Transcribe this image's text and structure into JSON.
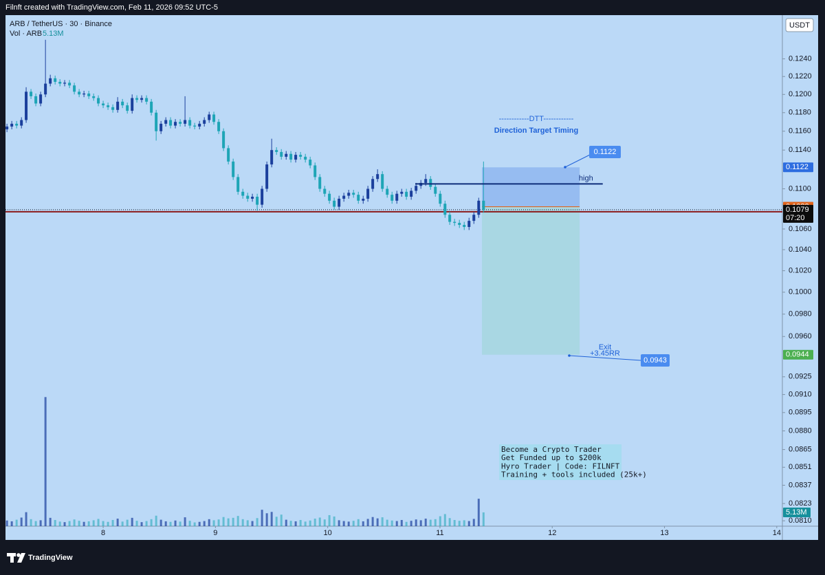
{
  "header": {
    "attribution": "Filnft created with TradingView.com, Feb 11, 2026 09:52 UTC-5",
    "symbol": "ARB / TetherUS · 30 · Binance",
    "currency": "USDT",
    "countdown": "07:20",
    "brand": "TradingView"
  },
  "chart_data": {
    "type": "candlestick",
    "log_scale": true,
    "grid": false,
    "up_color": "#1b3f9c",
    "down_color": "#1ea5b6",
    "xlim": [
      7.13,
      14.05
    ],
    "xticks": [
      8,
      9,
      10,
      11,
      12,
      13,
      14
    ],
    "ylim": [
      0.0806,
      0.1291
    ],
    "yticks": [
      {
        "value": 0.124,
        "label": "0.1240"
      },
      {
        "value": 0.122,
        "label": "0.1220"
      },
      {
        "value": 0.12,
        "label": "0.1200"
      },
      {
        "value": 0.118,
        "label": "0.1180"
      },
      {
        "value": 0.116,
        "label": "0.1160"
      },
      {
        "value": 0.114,
        "label": "0.1140"
      },
      {
        "value": 0.11,
        "label": "0.1100"
      },
      {
        "value": 0.106,
        "label": "0.1060"
      },
      {
        "value": 0.104,
        "label": "0.1040"
      },
      {
        "value": 0.102,
        "label": "0.1020"
      },
      {
        "value": 0.1,
        "label": "0.1000"
      },
      {
        "value": 0.098,
        "label": "0.0980"
      },
      {
        "value": 0.096,
        "label": "0.0960"
      },
      0.0925,
      {
        "value": 0.091,
        "label": "0.0910"
      },
      0.0895,
      {
        "value": 0.088,
        "label": "0.0880"
      },
      0.0865,
      0.0851,
      0.0837,
      0.0823,
      {
        "value": 0.081,
        "label": "0.0810"
      }
    ],
    "x": [
      7.143,
      7.186,
      7.229,
      7.272,
      7.314,
      7.357,
      7.4,
      7.443,
      7.486,
      7.529,
      7.572,
      7.615,
      7.657,
      7.7,
      7.743,
      7.786,
      7.829,
      7.872,
      7.915,
      7.957,
      8.0,
      8.043,
      8.086,
      8.129,
      8.172,
      8.215,
      8.258,
      8.3,
      8.343,
      8.386,
      8.429,
      8.472,
      8.515,
      8.558,
      8.6,
      8.643,
      8.686,
      8.729,
      8.772,
      8.815,
      8.858,
      8.901,
      8.944,
      8.986,
      9.029,
      9.072,
      9.115,
      9.158,
      9.201,
      9.244,
      9.287,
      9.329,
      9.372,
      9.415,
      9.458,
      9.501,
      9.544,
      9.587,
      9.63,
      9.672,
      9.715,
      9.758,
      9.801,
      9.844,
      9.887,
      9.93,
      9.973,
      10.015,
      10.058,
      10.101,
      10.144,
      10.187,
      10.23,
      10.273,
      10.316,
      10.358,
      10.401,
      10.444,
      10.487,
      10.53,
      10.573,
      10.616,
      10.659,
      10.701,
      10.744,
      10.787,
      10.83,
      10.873,
      10.916,
      10.959,
      11.002,
      11.045,
      11.087,
      11.13,
      11.173,
      11.216,
      11.259,
      11.302,
      11.345,
      11.388
    ],
    "open": [
      0.1162,
      0.1165,
      0.1168,
      0.1166,
      0.1172,
      0.1203,
      0.1198,
      0.119,
      0.12,
      0.1212,
      0.1218,
      0.1214,
      0.1212,
      0.1213,
      0.121,
      0.1203,
      0.12,
      0.1201,
      0.1198,
      0.1196,
      0.119,
      0.1188,
      0.1186,
      0.1183,
      0.1192,
      0.1188,
      0.1182,
      0.1196,
      0.1194,
      0.1196,
      0.1192,
      0.118,
      0.116,
      0.1168,
      0.1172,
      0.1166,
      0.117,
      0.1168,
      0.1172,
      0.1166,
      0.1165,
      0.1168,
      0.1172,
      0.1178,
      0.117,
      0.116,
      0.1142,
      0.1128,
      0.1112,
      0.1097,
      0.1093,
      0.109,
      0.1092,
      0.1084,
      0.11,
      0.1125,
      0.114,
      0.1138,
      0.1133,
      0.1136,
      0.113,
      0.1135,
      0.1133,
      0.113,
      0.1124,
      0.1112,
      0.11,
      0.1095,
      0.1088,
      0.1082,
      0.109,
      0.1093,
      0.1096,
      0.1094,
      0.1088,
      0.109,
      0.11,
      0.111,
      0.1115,
      0.11,
      0.1094,
      0.1088,
      0.1095,
      0.1097,
      0.1092,
      0.1098,
      0.1103,
      0.1106,
      0.111,
      0.1102,
      0.1095,
      0.1085,
      0.1074,
      0.1067,
      0.1066,
      0.1064,
      0.1062,
      0.1068,
      0.1074,
      0.1088
    ],
    "high": [
      0.1168,
      0.1171,
      0.1171,
      0.1175,
      0.1208,
      0.1206,
      0.1201,
      0.1203,
      0.1262,
      0.1222,
      0.1221,
      0.1217,
      0.1216,
      0.1216,
      0.1213,
      0.1206,
      0.1204,
      0.1204,
      0.1201,
      0.1199,
      0.1193,
      0.1191,
      0.1189,
      0.1197,
      0.1195,
      0.1191,
      0.12,
      0.1199,
      0.1199,
      0.1199,
      0.1195,
      0.1183,
      0.1171,
      0.1175,
      0.1175,
      0.1173,
      0.1173,
      0.1198,
      0.1175,
      0.1169,
      0.1171,
      0.1175,
      0.1181,
      0.1181,
      0.1173,
      0.1163,
      0.1145,
      0.1131,
      0.1115,
      0.11,
      0.1096,
      0.1095,
      0.1095,
      0.1103,
      0.1128,
      0.1152,
      0.1143,
      0.1141,
      0.1139,
      0.1139,
      0.1138,
      0.1138,
      0.1136,
      0.1133,
      0.1127,
      0.1115,
      0.1103,
      0.1098,
      0.1091,
      0.1093,
      0.1096,
      0.1099,
      0.1099,
      0.1097,
      0.1093,
      0.1103,
      0.1113,
      0.112,
      0.1118,
      0.1103,
      0.1097,
      0.1098,
      0.11,
      0.11,
      0.1101,
      0.1106,
      0.1109,
      0.1115,
      0.1113,
      0.1105,
      0.1098,
      0.1088,
      0.1077,
      0.107,
      0.1069,
      0.1067,
      0.1071,
      0.1077,
      0.1091,
      0.1128
    ],
    "low": [
      0.1159,
      0.1162,
      0.1163,
      0.1163,
      0.1169,
      0.1195,
      0.1187,
      0.1187,
      0.1197,
      0.1209,
      0.1211,
      0.1209,
      0.1209,
      0.1207,
      0.12,
      0.1197,
      0.1197,
      0.1195,
      0.1193,
      0.1187,
      0.1185,
      0.1183,
      0.118,
      0.118,
      0.1185,
      0.1179,
      0.1179,
      0.1191,
      0.1191,
      0.1189,
      0.1177,
      0.115,
      0.1157,
      0.1165,
      0.1163,
      0.1163,
      0.1165,
      0.1165,
      0.1163,
      0.1162,
      0.1162,
      0.1165,
      0.1169,
      0.1167,
      0.1157,
      0.1139,
      0.1125,
      0.1109,
      0.1094,
      0.109,
      0.1087,
      0.1087,
      0.1078,
      0.1081,
      0.1097,
      0.1122,
      0.1135,
      0.113,
      0.113,
      0.1127,
      0.1127,
      0.113,
      0.1127,
      0.1121,
      0.1109,
      0.1097,
      0.1092,
      0.1085,
      0.1079,
      0.1079,
      0.1087,
      0.109,
      0.1091,
      0.1085,
      0.1085,
      0.1087,
      0.1097,
      0.1107,
      0.1097,
      0.1091,
      0.1085,
      0.1085,
      0.1092,
      0.1089,
      0.1089,
      0.1095,
      0.11,
      0.1103,
      0.1099,
      0.1092,
      0.1082,
      0.1071,
      0.1064,
      0.1063,
      0.1061,
      0.1059,
      0.1059,
      0.1065,
      0.1071,
      0.1076
    ],
    "close": [
      0.1165,
      0.1168,
      0.1166,
      0.1172,
      0.1203,
      0.1198,
      0.119,
      0.12,
      0.1212,
      0.1218,
      0.1214,
      0.1212,
      0.1213,
      0.121,
      0.1203,
      0.12,
      0.1201,
      0.1198,
      0.1196,
      0.119,
      0.1188,
      0.1186,
      0.1183,
      0.1192,
      0.1188,
      0.1182,
      0.1196,
      0.1194,
      0.1196,
      0.1192,
      0.118,
      0.116,
      0.1168,
      0.1172,
      0.1166,
      0.117,
      0.1168,
      0.1172,
      0.1166,
      0.1165,
      0.1168,
      0.1172,
      0.1178,
      0.117,
      0.116,
      0.1142,
      0.1128,
      0.1112,
      0.1097,
      0.1093,
      0.109,
      0.1092,
      0.1084,
      0.11,
      0.1125,
      0.114,
      0.1138,
      0.1133,
      0.1136,
      0.113,
      0.1135,
      0.1133,
      0.113,
      0.1124,
      0.1112,
      0.11,
      0.1095,
      0.1088,
      0.1082,
      0.109,
      0.1093,
      0.1096,
      0.1094,
      0.1088,
      0.109,
      0.11,
      0.111,
      0.1115,
      0.11,
      0.1094,
      0.1088,
      0.1095,
      0.1097,
      0.1092,
      0.1098,
      0.1103,
      0.1106,
      0.111,
      0.1102,
      0.1095,
      0.1085,
      0.1074,
      0.1067,
      0.1066,
      0.1064,
      0.1062,
      0.1068,
      0.1074,
      0.1088,
      0.1079
    ],
    "volume": {
      "name": "Vol · ARB",
      "color": "#1ea5b6",
      "ylim": [
        0,
        190000000
      ],
      "values": [
        2100000,
        1800000,
        2400000,
        3200000,
        5200000,
        2600000,
        1900000,
        2200000,
        48000000,
        3100000,
        2300000,
        1700000,
        1500000,
        1900000,
        2500000,
        2000000,
        1600000,
        1800000,
        2200000,
        2700000,
        1900000,
        1600000,
        2300000,
        2800000,
        1700000,
        2400000,
        3100000,
        2000000,
        1500000,
        1900000,
        2600000,
        3900000,
        2400000,
        1800000,
        1600000,
        2100000,
        1700000,
        3300000,
        2000000,
        1400000,
        1600000,
        1900000,
        2600000,
        2200000,
        2500000,
        3400000,
        2900000,
        3100000,
        3800000,
        2600000,
        2200000,
        1900000,
        3000000,
        6100000,
        4800000,
        5300000,
        3500000,
        4300000,
        2400000,
        2000000,
        1800000,
        2300000,
        1700000,
        2100000,
        2800000,
        3200000,
        2500000,
        4100000,
        3600000,
        2200000,
        1900000,
        1700000,
        2000000,
        2600000,
        1800000,
        2700000,
        3400000,
        2900000,
        3300000,
        2400000,
        2100000,
        1900000,
        2300000,
        1600000,
        2000000,
        2500000,
        2200000,
        2800000,
        2400000,
        2600000,
        3700000,
        4500000,
        3000000,
        2300000,
        2000000,
        2200000,
        1900000,
        2700000,
        10200000,
        5130000
      ],
      "value_labels": [
        null,
        null,
        null,
        null,
        null,
        null,
        null,
        null,
        null,
        null,
        null,
        null,
        null,
        null,
        null,
        null,
        null,
        null,
        null,
        null,
        null,
        null,
        null,
        null,
        null,
        null,
        null,
        null,
        null,
        null,
        null,
        null,
        null,
        null,
        null,
        null,
        null,
        null,
        null,
        null,
        null,
        null,
        null,
        null,
        null,
        null,
        null,
        null,
        null,
        null,
        null,
        null,
        null,
        null,
        null,
        null,
        null,
        null,
        null,
        null,
        null,
        null,
        null,
        null,
        null,
        null,
        null,
        null,
        null,
        null,
        null,
        null,
        null,
        null,
        null,
        null,
        null,
        null,
        null,
        null,
        null,
        null,
        null,
        null,
        null,
        null,
        null,
        null,
        null,
        null,
        null,
        null,
        null,
        null,
        null,
        null,
        null,
        null,
        null,
        "5.13M"
      ]
    },
    "position": {
      "x_start": 11.374,
      "x_end": 12.244,
      "stop": 0.1122,
      "entry": 0.1082,
      "target": 0.0944,
      "stop_color": "#8fb6f0",
      "entry_color": "#e0641c",
      "target_color": "#a6d6df",
      "target_badge_color": "#4caf50"
    },
    "level_line": {
      "value": 0.1077,
      "color": "#8b1a1a"
    },
    "high_line": {
      "label": "high",
      "value": 0.1105,
      "x_start": 10.78,
      "x_end": 12.45,
      "color": "#0d2d7a"
    },
    "exit_callout": {
      "title": "Exit",
      "subtitle": "+3.45RR",
      "value": 0.0943
    },
    "annotations": [
      "------------DTT------------",
      "Direction Target Timing"
    ],
    "promo": [
      "Become a Crypto Trader",
      "Get Funded up to $200k",
      "Hyro Trader | Code: FILNFT",
      "Training + tools included (25k+)"
    ]
  }
}
